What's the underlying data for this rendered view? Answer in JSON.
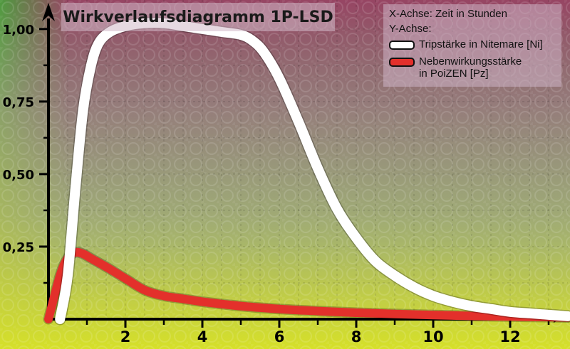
{
  "chart_data": {
    "type": "line",
    "title": "Wirkverlaufsdiagramm 1P-LSD",
    "legend": {
      "placement": "top-right",
      "lines": [
        "X-Achse: Zeit in Stunden",
        "Y-Achse:"
      ]
    },
    "xlim": [
      0,
      13.5
    ],
    "ylim": [
      0,
      1.1
    ],
    "x_ticks": [
      2,
      4,
      6,
      8,
      10,
      12
    ],
    "x_minor_ticks": [
      1,
      3,
      5,
      7,
      9,
      11,
      13
    ],
    "y_ticks": [
      0.25,
      0.5,
      0.75,
      1.0
    ],
    "y_tick_labels": [
      "0,25",
      "0,50",
      "0,75",
      "1,00"
    ],
    "grid": true,
    "series": [
      {
        "name": "Tripstärke in Nitemare [Ni]",
        "color": "#ffffff",
        "x": [
          0.3,
          0.5,
          0.7,
          0.9,
          1.1,
          1.3,
          1.6,
          2.0,
          2.5,
          3.0,
          3.5,
          4.0,
          4.5,
          5.0,
          5.3,
          5.6,
          6.0,
          6.5,
          7.0,
          7.5,
          8.0,
          8.5,
          9.0,
          9.5,
          10.0,
          10.5,
          11.0,
          11.5,
          12.0,
          12.5,
          13.0,
          13.5
        ],
        "y": [
          0.0,
          0.15,
          0.45,
          0.72,
          0.87,
          0.95,
          0.99,
          1.01,
          1.02,
          1.02,
          1.01,
          1.0,
          0.99,
          0.98,
          0.96,
          0.92,
          0.83,
          0.68,
          0.52,
          0.38,
          0.28,
          0.2,
          0.15,
          0.11,
          0.08,
          0.06,
          0.045,
          0.035,
          0.025,
          0.02,
          0.015,
          0.01
        ]
      },
      {
        "name": "Nebenwirkungsstärke\nin PoiZEN [Pz]",
        "color": "#e3302b",
        "x": [
          0.0,
          0.3,
          0.5,
          0.7,
          0.9,
          1.1,
          1.5,
          2.0,
          2.5,
          3.0,
          3.5,
          4.0,
          5.0,
          6.0,
          7.0,
          8.0,
          9.0,
          10.0,
          11.0,
          12.0,
          13.0,
          13.5
        ],
        "y": [
          0.0,
          0.15,
          0.21,
          0.23,
          0.225,
          0.21,
          0.18,
          0.14,
          0.1,
          0.08,
          0.07,
          0.06,
          0.045,
          0.035,
          0.028,
          0.022,
          0.018,
          0.014,
          0.011,
          0.009,
          0.007,
          0.006
        ]
      }
    ]
  }
}
